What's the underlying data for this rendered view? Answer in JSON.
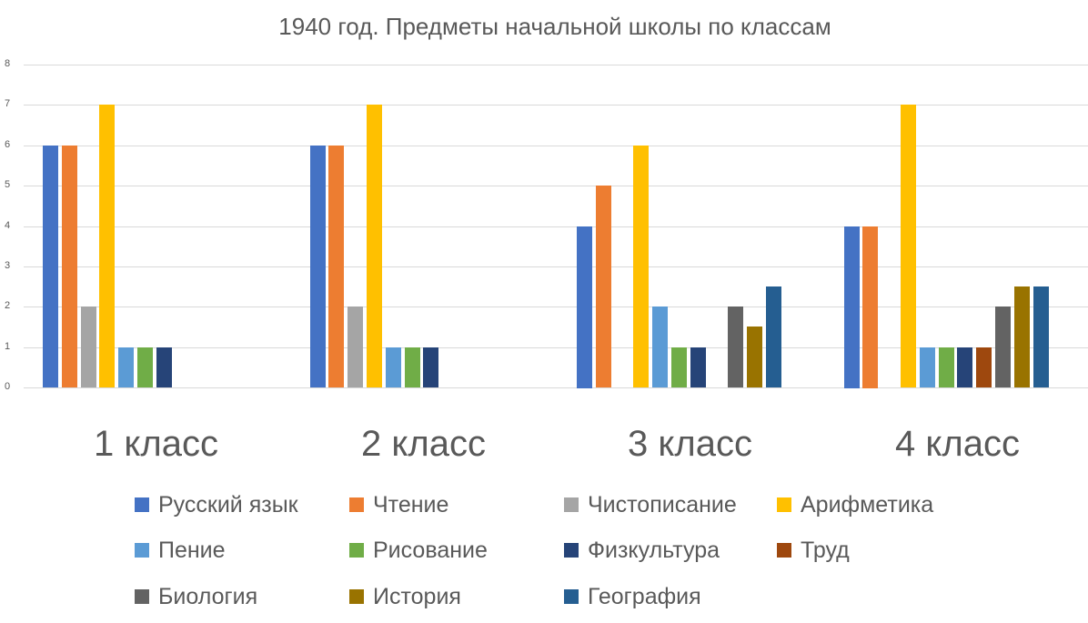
{
  "chart_data": {
    "type": "bar",
    "title": "1940 год. Предметы начальной школы по классам",
    "xlabel": "",
    "ylabel": "",
    "ylim": [
      0,
      8
    ],
    "yticks": [
      0,
      1,
      2,
      3,
      4,
      5,
      6,
      7,
      8
    ],
    "grid": true,
    "legend_position": "bottom",
    "categories": [
      "1 класс",
      "2 класс",
      "3 класс",
      "4 класс"
    ],
    "series": [
      {
        "name": "Русский язык",
        "color": "#4472C4",
        "values": [
          6,
          6,
          4,
          4
        ]
      },
      {
        "name": "Чтение",
        "color": "#ED7D31",
        "values": [
          6,
          6,
          5,
          4
        ]
      },
      {
        "name": "Чистописание",
        "color": "#A5A5A5",
        "values": [
          2,
          2,
          0,
          0
        ]
      },
      {
        "name": "Арифметика",
        "color": "#FFC000",
        "values": [
          7,
          7,
          6,
          7
        ]
      },
      {
        "name": "Пение",
        "color": "#5B9BD5",
        "values": [
          1,
          1,
          2,
          1
        ]
      },
      {
        "name": "Рисование",
        "color": "#70AD47",
        "values": [
          1,
          1,
          1,
          1
        ]
      },
      {
        "name": "Физкультура",
        "color": "#264478",
        "values": [
          1,
          1,
          1,
          1
        ]
      },
      {
        "name": "Труд",
        "color": "#9E480E",
        "values": [
          0,
          0,
          0,
          1
        ]
      },
      {
        "name": "Биология",
        "color": "#636363",
        "values": [
          0,
          0,
          2,
          2
        ]
      },
      {
        "name": "История",
        "color": "#997300",
        "values": [
          0,
          0,
          1.5,
          2.5
        ]
      },
      {
        "name": "География",
        "color": "#255E91",
        "values": [
          0,
          0,
          2.5,
          2.5
        ]
      }
    ]
  }
}
